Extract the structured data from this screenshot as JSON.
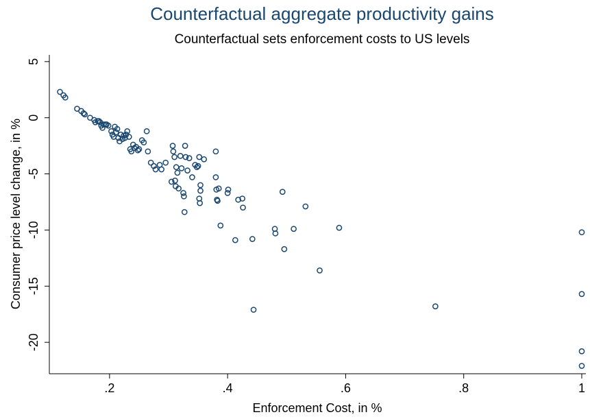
{
  "chart_data": {
    "type": "scatter",
    "title": "Counterfactual aggregate productivity gains",
    "subtitle": "Counterfactual sets enforcement costs to US levels",
    "x_label": "Enforcement Cost, in %",
    "y_label": "Consumer price level change, in %",
    "color": "#1a476f",
    "xlim": [
      0.098,
      1.007
    ],
    "ylim": [
      -22.8,
      5.6
    ],
    "xticks": [
      {
        "value": 0.2,
        "label": ".2"
      },
      {
        "value": 0.4,
        "label": ".4"
      },
      {
        "value": 0.6,
        "label": ".6"
      },
      {
        "value": 0.8,
        "label": ".8"
      },
      1
    ],
    "yticks": [
      -20,
      -15,
      -10,
      -5,
      0,
      5
    ],
    "x": [
      0.116,
      0.122,
      0.125,
      0.145,
      0.152,
      0.156,
      0.158,
      0.167,
      0.174,
      0.176,
      0.18,
      0.182,
      0.184,
      0.186,
      0.188,
      0.19,
      0.193,
      0.195,
      0.198,
      0.203,
      0.205,
      0.207,
      0.209,
      0.211,
      0.213,
      0.215,
      0.217,
      0.219,
      0.222,
      0.224,
      0.226,
      0.228,
      0.23,
      0.233,
      0.235,
      0.237,
      0.24,
      0.242,
      0.245,
      0.248,
      0.25,
      0.255,
      0.258,
      0.263,
      0.265,
      0.27,
      0.275,
      0.278,
      0.285,
      0.288,
      0.295,
      0.305,
      0.307,
      0.308,
      0.31,
      0.311,
      0.312,
      0.313,
      0.315,
      0.317,
      0.32,
      0.322,
      0.325,
      0.326,
      0.327,
      0.328,
      0.329,
      0.332,
      0.335,
      0.34,
      0.345,
      0.348,
      0.35,
      0.352,
      0.352,
      0.353,
      0.354,
      0.354,
      0.36,
      0.38,
      0.38,
      0.381,
      0.382,
      0.383,
      0.385,
      0.388,
      0.4,
      0.401,
      0.413,
      0.418,
      0.425,
      0.426,
      0.442,
      0.444,
      0.48,
      0.481,
      0.493,
      0.496,
      0.512,
      0.532,
      0.556,
      0.589,
      0.752,
      1,
      1,
      1,
      1
    ],
    "y": [
      2.3,
      2.0,
      1.8,
      0.8,
      0.6,
      0.4,
      0.3,
      0.0,
      -0.2,
      -0.4,
      -0.3,
      -0.3,
      -0.4,
      -0.7,
      -0.9,
      -0.6,
      -0.6,
      -0.6,
      -0.7,
      -1.2,
      -1.5,
      -1.7,
      -0.8,
      -1.3,
      -1.0,
      -1.8,
      -2.1,
      -1.5,
      -1.9,
      -1.6,
      -1.8,
      -1.5,
      -1.2,
      -1.7,
      -2.8,
      -3.0,
      -2.4,
      -2.7,
      -2.6,
      -2.9,
      -2.8,
      -2.0,
      -2.2,
      -1.2,
      -3.0,
      -4.0,
      -4.3,
      -4.6,
      -4.2,
      -4.6,
      -4.0,
      -5.7,
      -2.5,
      -3.0,
      -3.5,
      -5.6,
      -6.1,
      -4.4,
      -4.9,
      -6.3,
      -3.4,
      -4.5,
      -6.7,
      -7.0,
      -8.4,
      -2.5,
      -3.5,
      -4.7,
      -3.6,
      -5.3,
      -4.2,
      -4.4,
      -4.3,
      -3.5,
      -7.2,
      -7.6,
      -6.0,
      -6.5,
      -3.7,
      -3.0,
      -5.3,
      -6.4,
      -7.3,
      -7.4,
      -6.3,
      -9.6,
      -6.7,
      -6.4,
      -10.9,
      -7.3,
      -7.2,
      -8.0,
      -10.8,
      -17.1,
      -9.9,
      -10.3,
      -6.6,
      -11.7,
      -9.9,
      -7.9,
      -13.6,
      -9.8,
      -16.8,
      -10.2,
      -15.7,
      -20.8,
      -22.1
    ]
  }
}
